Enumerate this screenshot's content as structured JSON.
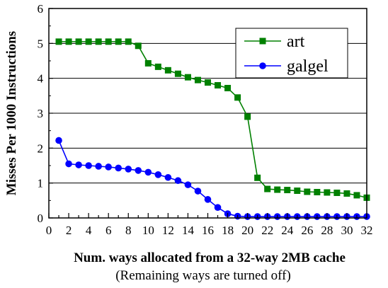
{
  "chart_data": {
    "type": "line",
    "title": "",
    "xlabel": "Num. ways allocated from a 32-way 2MB cache",
    "xlabel_note": "(Remaining ways are turned off)",
    "ylabel": "Misses Per 1000 Instructions",
    "xlim": [
      0,
      32
    ],
    "ylim": [
      0,
      6
    ],
    "x_ticks": [
      0,
      2,
      4,
      6,
      8,
      10,
      12,
      14,
      16,
      18,
      20,
      22,
      24,
      26,
      28,
      30,
      32
    ],
    "y_ticks": [
      0,
      1,
      2,
      3,
      4,
      5,
      6
    ],
    "grid": "horizontal",
    "legend_position": "top-right",
    "x": [
      1,
      2,
      3,
      4,
      5,
      6,
      7,
      8,
      9,
      10,
      11,
      12,
      13,
      14,
      15,
      16,
      17,
      18,
      19,
      20,
      21,
      22,
      23,
      24,
      25,
      26,
      27,
      28,
      29,
      30,
      31,
      32
    ],
    "series": [
      {
        "name": "art",
        "color": "#008000",
        "marker": "square",
        "values": [
          5.05,
          5.05,
          5.05,
          5.05,
          5.05,
          5.05,
          5.05,
          5.05,
          4.93,
          4.43,
          4.33,
          4.23,
          4.13,
          4.03,
          3.95,
          3.88,
          3.8,
          3.72,
          3.45,
          2.9,
          1.15,
          0.83,
          0.81,
          0.8,
          0.78,
          0.75,
          0.74,
          0.73,
          0.72,
          0.7,
          0.65,
          0.58
        ]
      },
      {
        "name": "galgel",
        "color": "#0000ff",
        "marker": "circle",
        "values": [
          2.22,
          1.55,
          1.52,
          1.5,
          1.48,
          1.46,
          1.43,
          1.4,
          1.36,
          1.31,
          1.24,
          1.16,
          1.07,
          0.95,
          0.77,
          0.53,
          0.3,
          0.12,
          0.05,
          0.04,
          0.04,
          0.04,
          0.04,
          0.04,
          0.04,
          0.04,
          0.04,
          0.04,
          0.04,
          0.04,
          0.04,
          0.04
        ]
      }
    ]
  }
}
